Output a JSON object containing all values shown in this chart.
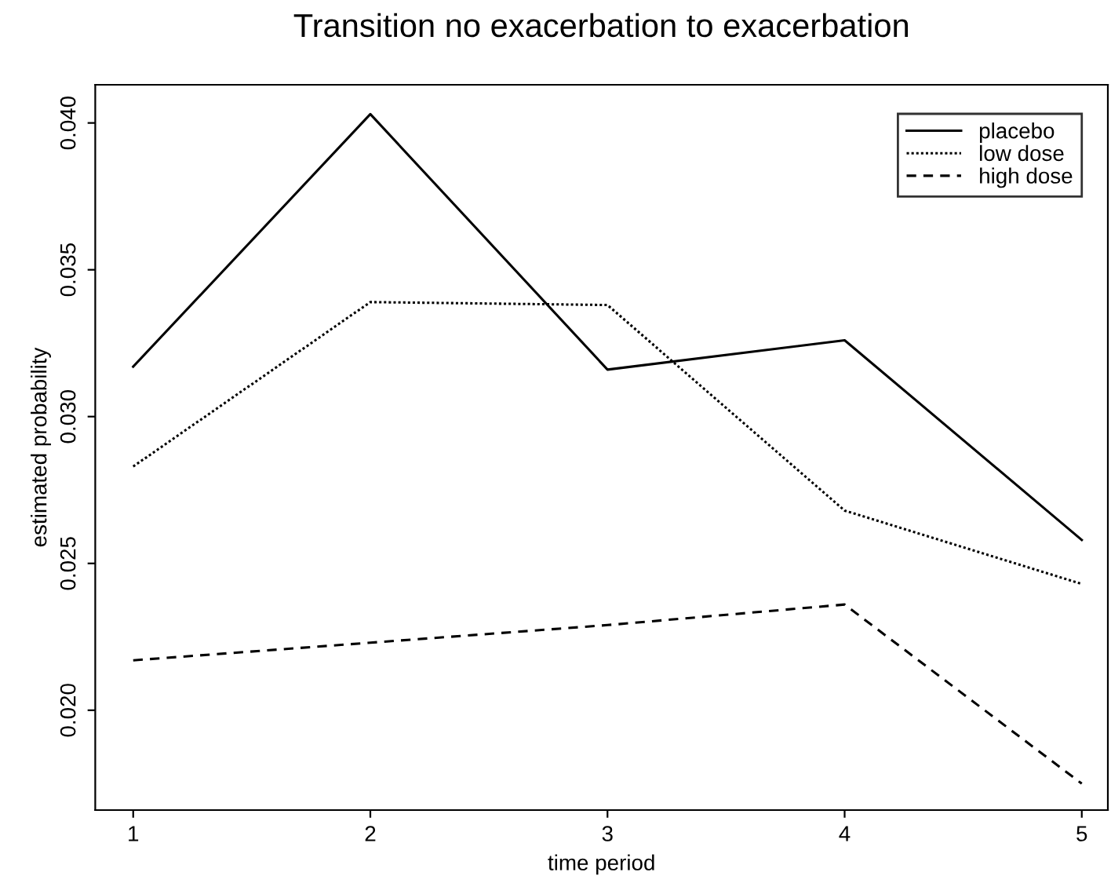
{
  "chart_data": {
    "type": "line",
    "title": "Transition no exacerbation to exacerbation",
    "xlabel": "time period",
    "ylabel": "estimated probability",
    "x": [
      1,
      2,
      3,
      4,
      5
    ],
    "series": [
      {
        "name": "placebo",
        "color": "#000000",
        "line_style": "solid",
        "values": [
          0.0317,
          0.0403,
          0.0316,
          0.0326,
          0.0258
        ]
      },
      {
        "name": "low dose",
        "color": "#000000",
        "line_style": "dotted",
        "values": [
          0.0283,
          0.0339,
          0.0338,
          0.0268,
          0.0243
        ]
      },
      {
        "name": "high dose",
        "color": "#000000",
        "line_style": "dashed",
        "values": [
          0.0217,
          0.0223,
          0.0229,
          0.0236,
          0.0175
        ]
      }
    ],
    "xlim": [
      0.84,
      5.11
    ],
    "ylim": [
      0.0166,
      0.0413
    ],
    "xticks": [
      1,
      2,
      3,
      4,
      5
    ],
    "yticks": [
      {
        "value": 0.02,
        "label": "0.020"
      },
      {
        "value": 0.025,
        "label": "0.025"
      },
      {
        "value": 0.03,
        "label": "0.030"
      },
      {
        "value": 0.035,
        "label": "0.035"
      },
      {
        "value": 0.04,
        "label": "0.040"
      }
    ],
    "grid": false,
    "legend": "top right",
    "marker": "none"
  }
}
